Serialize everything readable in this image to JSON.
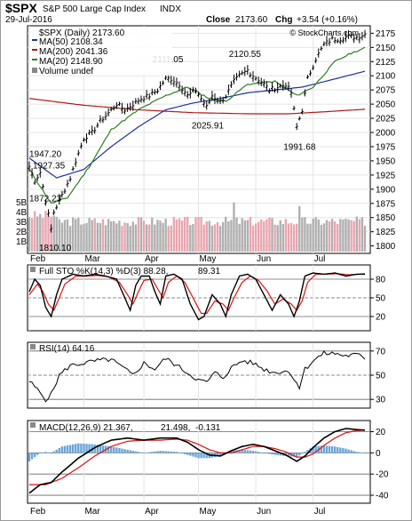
{
  "header": {
    "symbol": "$SPX",
    "name": "S&P 500 Large Cap Index",
    "exchange": "INDX",
    "date": "29-Jul-2016",
    "close_label": "Close",
    "close_value": "2173.60",
    "chg_label": "Chg",
    "chg_value": "+3.54 (+0.16%)",
    "watermark": "© StockCharts.com"
  },
  "colors": {
    "price": "#000000",
    "ma50": "#1f2f9c",
    "ma200": "#b01818",
    "ma20": "#2e7d1f",
    "volume_up": "#b0b0b0",
    "volume_down": "#e8a7b0",
    "stoK": "#000000",
    "stoD": "#dd1111",
    "macd": "#000000",
    "signal": "#dd1111",
    "hist": "#6aa6d6"
  },
  "chart_data": [
    {
      "type": "line",
      "panel": "price",
      "legend": {
        "main": "$SPX (Daily) 2173.60",
        "ma50": "MA(50) 2108.34",
        "ma200": "MA(200) 2041.36",
        "ma20": "MA(20) 2148.90",
        "volume": "Volume undef"
      },
      "ylim": [
        1790,
        2185
      ],
      "yticks": [
        2175,
        2150,
        2125,
        2100,
        2075,
        2050,
        2025,
        2000,
        1975,
        1950,
        1925,
        1900,
        1875,
        1850,
        1825,
        1800
      ],
      "x_months": [
        {
          "label": "Feb",
          "day": 0
        },
        {
          "label": "Mar",
          "day": 20
        },
        {
          "label": "Apr",
          "day": 42
        },
        {
          "label": "May",
          "day": 62
        },
        {
          "label": "Jun",
          "day": 83
        },
        {
          "label": "Jul",
          "day": 104
        }
      ],
      "ndays": 124,
      "annotations": [
        {
          "text": "1947.20",
          "day": 2,
          "value": 1947.2
        },
        {
          "text": "1927.35",
          "day": 4,
          "value": 1927.35
        },
        {
          "text": "1872.23",
          "day": 6,
          "value": 1872.23
        },
        {
          "text": "1810.10",
          "day": 8,
          "value": 1810.1
        },
        {
          "text": "2111.05",
          "day": 51,
          "value": 2111.05
        },
        {
          "text": "2025.91",
          "day": 66,
          "value": 2025.91
        },
        {
          "text": "2120.55",
          "day": 79,
          "value": 2120.55
        },
        {
          "text": "1991.68",
          "day": 99,
          "value": 1991.68
        }
      ],
      "close_anchors": [
        [
          0,
          1940
        ],
        [
          2,
          1915
        ],
        [
          4,
          1930
        ],
        [
          6,
          1880
        ],
        [
          8,
          1830
        ],
        [
          9,
          1860
        ],
        [
          12,
          1890
        ],
        [
          15,
          1920
        ],
        [
          17,
          1950
        ],
        [
          20,
          1990
        ],
        [
          23,
          2000
        ],
        [
          26,
          2020
        ],
        [
          29,
          2035
        ],
        [
          32,
          2050
        ],
        [
          35,
          2040
        ],
        [
          38,
          2050
        ],
        [
          41,
          2060
        ],
        [
          44,
          2065
        ],
        [
          47,
          2075
        ],
        [
          50,
          2095
        ],
        [
          52,
          2095
        ],
        [
          55,
          2085
        ],
        [
          58,
          2065
        ],
        [
          61,
          2075
        ],
        [
          63,
          2060
        ],
        [
          65,
          2045
        ],
        [
          67,
          2065
        ],
        [
          70,
          2055
        ],
        [
          72,
          2065
        ],
        [
          75,
          2090
        ],
        [
          77,
          2100
        ],
        [
          80,
          2110
        ],
        [
          82,
          2100
        ],
        [
          85,
          2090
        ],
        [
          88,
          2075
        ],
        [
          91,
          2080
        ],
        [
          94,
          2085
        ],
        [
          96,
          2070
        ],
        [
          98,
          2010
        ],
        [
          100,
          2040
        ],
        [
          102,
          2095
        ],
        [
          105,
          2130
        ],
        [
          108,
          2155
        ],
        [
          111,
          2165
        ],
        [
          114,
          2165
        ],
        [
          117,
          2170
        ],
        [
          120,
          2168
        ],
        [
          123,
          2173.6
        ]
      ],
      "ma50_anchors": [
        [
          0,
          1955
        ],
        [
          10,
          1920
        ],
        [
          20,
          1935
        ],
        [
          30,
          1975
        ],
        [
          40,
          2010
        ],
        [
          50,
          2040
        ],
        [
          60,
          2052
        ],
        [
          70,
          2060
        ],
        [
          80,
          2070
        ],
        [
          90,
          2075
        ],
        [
          100,
          2080
        ],
        [
          110,
          2092
        ],
        [
          123,
          2108
        ]
      ],
      "ma200_anchors": [
        [
          0,
          2060
        ],
        [
          20,
          2048
        ],
        [
          40,
          2040
        ],
        [
          60,
          2035
        ],
        [
          80,
          2033
        ],
        [
          95,
          2033
        ],
        [
          110,
          2037
        ],
        [
          123,
          2041
        ]
      ],
      "ma20_anchors": [
        [
          0,
          1935
        ],
        [
          8,
          1875
        ],
        [
          14,
          1885
        ],
        [
          22,
          1940
        ],
        [
          30,
          2005
        ],
        [
          40,
          2040
        ],
        [
          50,
          2065
        ],
        [
          58,
          2080
        ],
        [
          66,
          2060
        ],
        [
          72,
          2055
        ],
        [
          80,
          2085
        ],
        [
          90,
          2090
        ],
        [
          98,
          2065
        ],
        [
          104,
          2080
        ],
        [
          112,
          2125
        ],
        [
          118,
          2140
        ],
        [
          123,
          2149
        ]
      ],
      "volume_axis": {
        "labels": [
          "5B",
          "4B",
          "3B",
          "2B",
          "1B"
        ],
        "levels": [
          5,
          4,
          3,
          2,
          1
        ],
        "max": 6.0
      }
    },
    {
      "type": "line",
      "panel": "stochastic",
      "legend": {
        "main": "Full STO %K(14,3) %D(3) 88.28,",
        "d_value": "89.31"
      },
      "ylim": [
        0,
        100
      ],
      "yticks": [
        80,
        50,
        20
      ],
      "k_anchors": [
        [
          0,
          60
        ],
        [
          2,
          80
        ],
        [
          4,
          70
        ],
        [
          6,
          35
        ],
        [
          8,
          20
        ],
        [
          10,
          55
        ],
        [
          12,
          80
        ],
        [
          16,
          88
        ],
        [
          20,
          85
        ],
        [
          24,
          88
        ],
        [
          28,
          85
        ],
        [
          32,
          80
        ],
        [
          35,
          50
        ],
        [
          37,
          30
        ],
        [
          39,
          70
        ],
        [
          41,
          85
        ],
        [
          44,
          85
        ],
        [
          46,
          60
        ],
        [
          48,
          40
        ],
        [
          50,
          85
        ],
        [
          53,
          88
        ],
        [
          56,
          80
        ],
        [
          59,
          40
        ],
        [
          62,
          15
        ],
        [
          64,
          20
        ],
        [
          67,
          55
        ],
        [
          70,
          40
        ],
        [
          72,
          20
        ],
        [
          74,
          55
        ],
        [
          77,
          85
        ],
        [
          80,
          88
        ],
        [
          83,
          80
        ],
        [
          86,
          55
        ],
        [
          89,
          30
        ],
        [
          92,
          55
        ],
        [
          95,
          40
        ],
        [
          97,
          20
        ],
        [
          99,
          45
        ],
        [
          101,
          85
        ],
        [
          104,
          90
        ],
        [
          108,
          88
        ],
        [
          112,
          90
        ],
        [
          116,
          85
        ],
        [
          120,
          88
        ],
        [
          123,
          88
        ]
      ],
      "d_anchors": [
        [
          0,
          55
        ],
        [
          3,
          72
        ],
        [
          5,
          60
        ],
        [
          7,
          40
        ],
        [
          9,
          30
        ],
        [
          11,
          50
        ],
        [
          13,
          72
        ],
        [
          17,
          85
        ],
        [
          21,
          85
        ],
        [
          25,
          86
        ],
        [
          29,
          84
        ],
        [
          33,
          75
        ],
        [
          36,
          55
        ],
        [
          38,
          40
        ],
        [
          40,
          60
        ],
        [
          42,
          78
        ],
        [
          45,
          80
        ],
        [
          47,
          65
        ],
        [
          49,
          50
        ],
        [
          51,
          75
        ],
        [
          54,
          85
        ],
        [
          57,
          75
        ],
        [
          60,
          50
        ],
        [
          63,
          25
        ],
        [
          65,
          25
        ],
        [
          68,
          45
        ],
        [
          71,
          40
        ],
        [
          73,
          30
        ],
        [
          75,
          50
        ],
        [
          78,
          75
        ],
        [
          81,
          85
        ],
        [
          84,
          78
        ],
        [
          87,
          62
        ],
        [
          90,
          40
        ],
        [
          93,
          48
        ],
        [
          96,
          40
        ],
        [
          98,
          30
        ],
        [
          100,
          45
        ],
        [
          102,
          75
        ],
        [
          105,
          88
        ],
        [
          109,
          88
        ],
        [
          113,
          89
        ],
        [
          117,
          87
        ],
        [
          121,
          88
        ],
        [
          123,
          89
        ]
      ]
    },
    {
      "type": "line",
      "panel": "rsi",
      "legend": {
        "main": "RSI(14) 64.16"
      },
      "ylim": [
        25,
        75
      ],
      "yticks": [
        70,
        50,
        30
      ],
      "rsi_anchors": [
        [
          0,
          45
        ],
        [
          3,
          38
        ],
        [
          6,
          30
        ],
        [
          8,
          34
        ],
        [
          11,
          50
        ],
        [
          15,
          58
        ],
        [
          20,
          60
        ],
        [
          25,
          62
        ],
        [
          30,
          63
        ],
        [
          35,
          55
        ],
        [
          38,
          50
        ],
        [
          42,
          60
        ],
        [
          46,
          55
        ],
        [
          50,
          64
        ],
        [
          54,
          58
        ],
        [
          58,
          52
        ],
        [
          62,
          46
        ],
        [
          65,
          44
        ],
        [
          68,
          52
        ],
        [
          71,
          48
        ],
        [
          74,
          56
        ],
        [
          78,
          62
        ],
        [
          82,
          60
        ],
        [
          86,
          55
        ],
        [
          90,
          52
        ],
        [
          94,
          54
        ],
        [
          97,
          48
        ],
        [
          99,
          40
        ],
        [
          101,
          55
        ],
        [
          104,
          62
        ],
        [
          108,
          68
        ],
        [
          112,
          68
        ],
        [
          116,
          66
        ],
        [
          120,
          67
        ],
        [
          123,
          64
        ]
      ]
    },
    {
      "type": "line",
      "panel": "macd",
      "legend": {
        "main": "MACD(12,26,9) 21.367,",
        "signal_value": "21.498,",
        "hist_value": "-0.131"
      },
      "ylim": [
        -45,
        28
      ],
      "yticks": [
        20,
        0,
        -20,
        -40
      ],
      "macd_anchors": [
        [
          0,
          -38
        ],
        [
          4,
          -30
        ],
        [
          8,
          -28
        ],
        [
          12,
          -18
        ],
        [
          18,
          -5
        ],
        [
          24,
          5
        ],
        [
          30,
          12
        ],
        [
          36,
          14
        ],
        [
          42,
          12
        ],
        [
          48,
          14
        ],
        [
          54,
          14
        ],
        [
          58,
          10
        ],
        [
          62,
          3
        ],
        [
          66,
          -2
        ],
        [
          70,
          -3
        ],
        [
          74,
          2
        ],
        [
          78,
          6
        ],
        [
          82,
          8
        ],
        [
          86,
          6
        ],
        [
          90,
          2
        ],
        [
          94,
          -2
        ],
        [
          98,
          -8
        ],
        [
          101,
          -3
        ],
        [
          104,
          5
        ],
        [
          108,
          14
        ],
        [
          112,
          20
        ],
        [
          116,
          23
        ],
        [
          120,
          22
        ],
        [
          123,
          21.4
        ]
      ],
      "signal_anchors": [
        [
          0,
          -30
        ],
        [
          6,
          -30
        ],
        [
          12,
          -24
        ],
        [
          18,
          -14
        ],
        [
          24,
          -3
        ],
        [
          30,
          6
        ],
        [
          36,
          11
        ],
        [
          42,
          12
        ],
        [
          48,
          12
        ],
        [
          54,
          13
        ],
        [
          58,
          12
        ],
        [
          62,
          8
        ],
        [
          66,
          3
        ],
        [
          70,
          0
        ],
        [
          74,
          0
        ],
        [
          78,
          3
        ],
        [
          82,
          6
        ],
        [
          86,
          6
        ],
        [
          90,
          4
        ],
        [
          94,
          1
        ],
        [
          98,
          -4
        ],
        [
          101,
          -4
        ],
        [
          104,
          -1
        ],
        [
          108,
          7
        ],
        [
          112,
          14
        ],
        [
          116,
          19
        ],
        [
          120,
          21
        ],
        [
          123,
          21.5
        ]
      ]
    }
  ]
}
